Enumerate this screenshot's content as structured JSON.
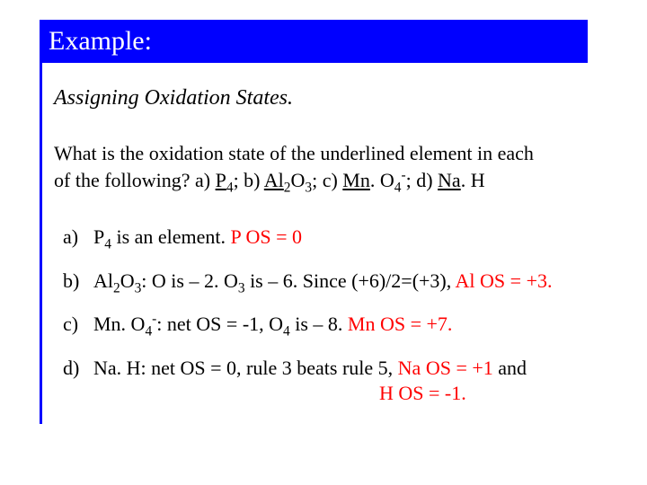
{
  "header": {
    "title": "Example:"
  },
  "subtitle": "Assigning Oxidation States.",
  "question": {
    "line1_pre": "What is the oxidation state of the underlined element in each",
    "line2_pre": "of the following? a) ",
    "part_a_elem": "P",
    "part_a_sub": "4",
    "sep_ab": "; b) ",
    "part_b_elem": "Al",
    "part_b_sub1": "2",
    "part_b_mid": "O",
    "part_b_sub2": "3",
    "sep_bc": "; c) ",
    "part_c_elem": "Mn",
    "part_c_mid": ". O",
    "part_c_sub": "4",
    "part_c_sup": "-",
    "sep_cd": "; d) ",
    "part_d_elem": "Na",
    "part_d_tail": ". H"
  },
  "answers": {
    "a": {
      "label": "a)",
      "pre": "P",
      "sub": "4",
      "mid": " is an element.  ",
      "ans": "P OS = 0"
    },
    "b": {
      "label": "b)",
      "pre": "Al",
      "sub1": "2",
      "mid1": "O",
      "sub2": "3",
      "mid2": ":  O is – 2.  O",
      "sub3": "3",
      "mid3": " is – 6.   Since (+6)/2=(+3), ",
      "ans": "Al OS = +3."
    },
    "c": {
      "label": "c)",
      "pre": "Mn. O",
      "sub1": "4",
      "sup1": "-",
      "mid1": ": net OS = -1, O",
      "sub2": "4",
      "mid2": " is – 8.  ",
      "ans": "Mn OS = +7."
    },
    "d": {
      "label": "d)",
      "pre": "Na. H: net OS = 0, rule 3 beats rule 5,   ",
      "ans1": "Na OS = +1 ",
      "mid": "and",
      "ans2": "H   OS = -1."
    }
  },
  "colors": {
    "accent": "#0000ff",
    "answer": "#ff0000",
    "text": "#000000",
    "background": "#ffffff"
  }
}
